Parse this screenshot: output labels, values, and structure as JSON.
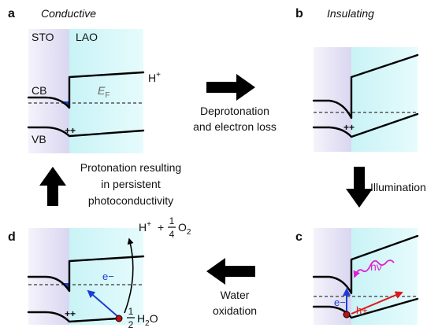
{
  "panels": [
    {
      "label": "a",
      "state": "Conductive",
      "layers": [
        "STO",
        "LAO"
      ],
      "bands": [
        "CB",
        "VB"
      ],
      "fermi": {
        "base": "E",
        "sub": "F"
      },
      "ion": {
        "base": "H",
        "sup": "+"
      }
    },
    {
      "label": "b",
      "state": "Insulating"
    },
    {
      "label": "c",
      "photon": "hν",
      "electron": "e−",
      "hole": "h+"
    },
    {
      "label": "d",
      "electron": "e−",
      "product": {
        "ion": "H",
        "charge": "+",
        "plus": "+",
        "numerator": "1",
        "denominator": "4",
        "molecule": "O",
        "subscript": "2"
      },
      "reactant": {
        "numerator": "1",
        "denominator": "2",
        "molecule": "H",
        "subscript": "2",
        "rest": "O"
      }
    }
  ],
  "transitions": [
    {
      "lines": [
        "Deprotonation",
        "and electron loss"
      ]
    },
    {
      "lines": [
        "Illumination"
      ]
    },
    {
      "lines": [
        "Water",
        "oxidation"
      ]
    },
    {
      "lines": [
        "Protonation resulting",
        "in persistent",
        "photoconductivity"
      ]
    }
  ]
}
